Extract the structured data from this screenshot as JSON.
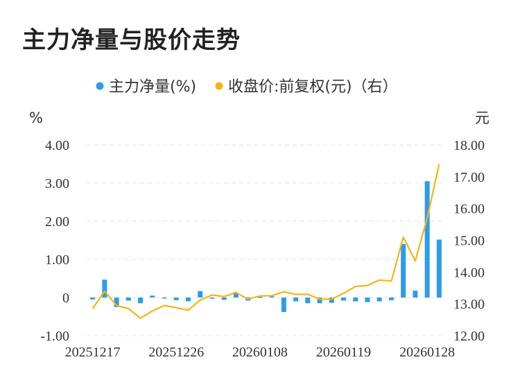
{
  "title": "主力净量与股价走势",
  "chart_data": {
    "type": "bar",
    "legend": [
      {
        "name": "主力净量(%)",
        "color": "#2E9BEA"
      },
      {
        "name": "收盘价:前复权(元)（右）",
        "color": "#F5B50F"
      }
    ],
    "y_left_unit": "%",
    "y_right_unit": "元",
    "y_left_ticks": [
      "4.00",
      "3.00",
      "2.00",
      "1.00",
      "0",
      "-1.00"
    ],
    "y_right_ticks": [
      "18.00",
      "17.00",
      "16.00",
      "15.00",
      "14.00",
      "13.00",
      "12.00"
    ],
    "ylim_left": [
      -1,
      4
    ],
    "ylim_right": [
      12,
      18
    ],
    "x_tick_labels": [
      "20251217",
      "20251226",
      "20260108",
      "20260119",
      "20260128"
    ],
    "series": [
      {
        "name": "主力净量(%)",
        "type": "bar",
        "values": [
          -0.05,
          0.47,
          -0.25,
          -0.08,
          -0.15,
          0.05,
          -0.02,
          -0.07,
          -0.1,
          0.17,
          -0.03,
          -0.06,
          0.12,
          -0.08,
          0.02,
          0.03,
          -0.38,
          -0.1,
          -0.15,
          -0.15,
          -0.14,
          -0.08,
          -0.1,
          -0.12,
          -0.1,
          -0.07,
          1.4,
          0.18,
          3.05,
          1.52
        ]
      },
      {
        "name": "收盘价:前复权(元)（右）",
        "type": "line",
        "values": [
          12.85,
          13.4,
          12.95,
          12.85,
          12.55,
          12.78,
          12.95,
          12.88,
          12.8,
          13.12,
          13.28,
          13.23,
          13.36,
          13.15,
          13.25,
          13.26,
          13.38,
          13.3,
          13.3,
          13.15,
          13.15,
          13.33,
          13.55,
          13.58,
          13.75,
          13.72,
          15.1,
          14.35,
          15.7,
          17.4
        ]
      }
    ],
    "grid": true,
    "legend_position": "top-center"
  }
}
